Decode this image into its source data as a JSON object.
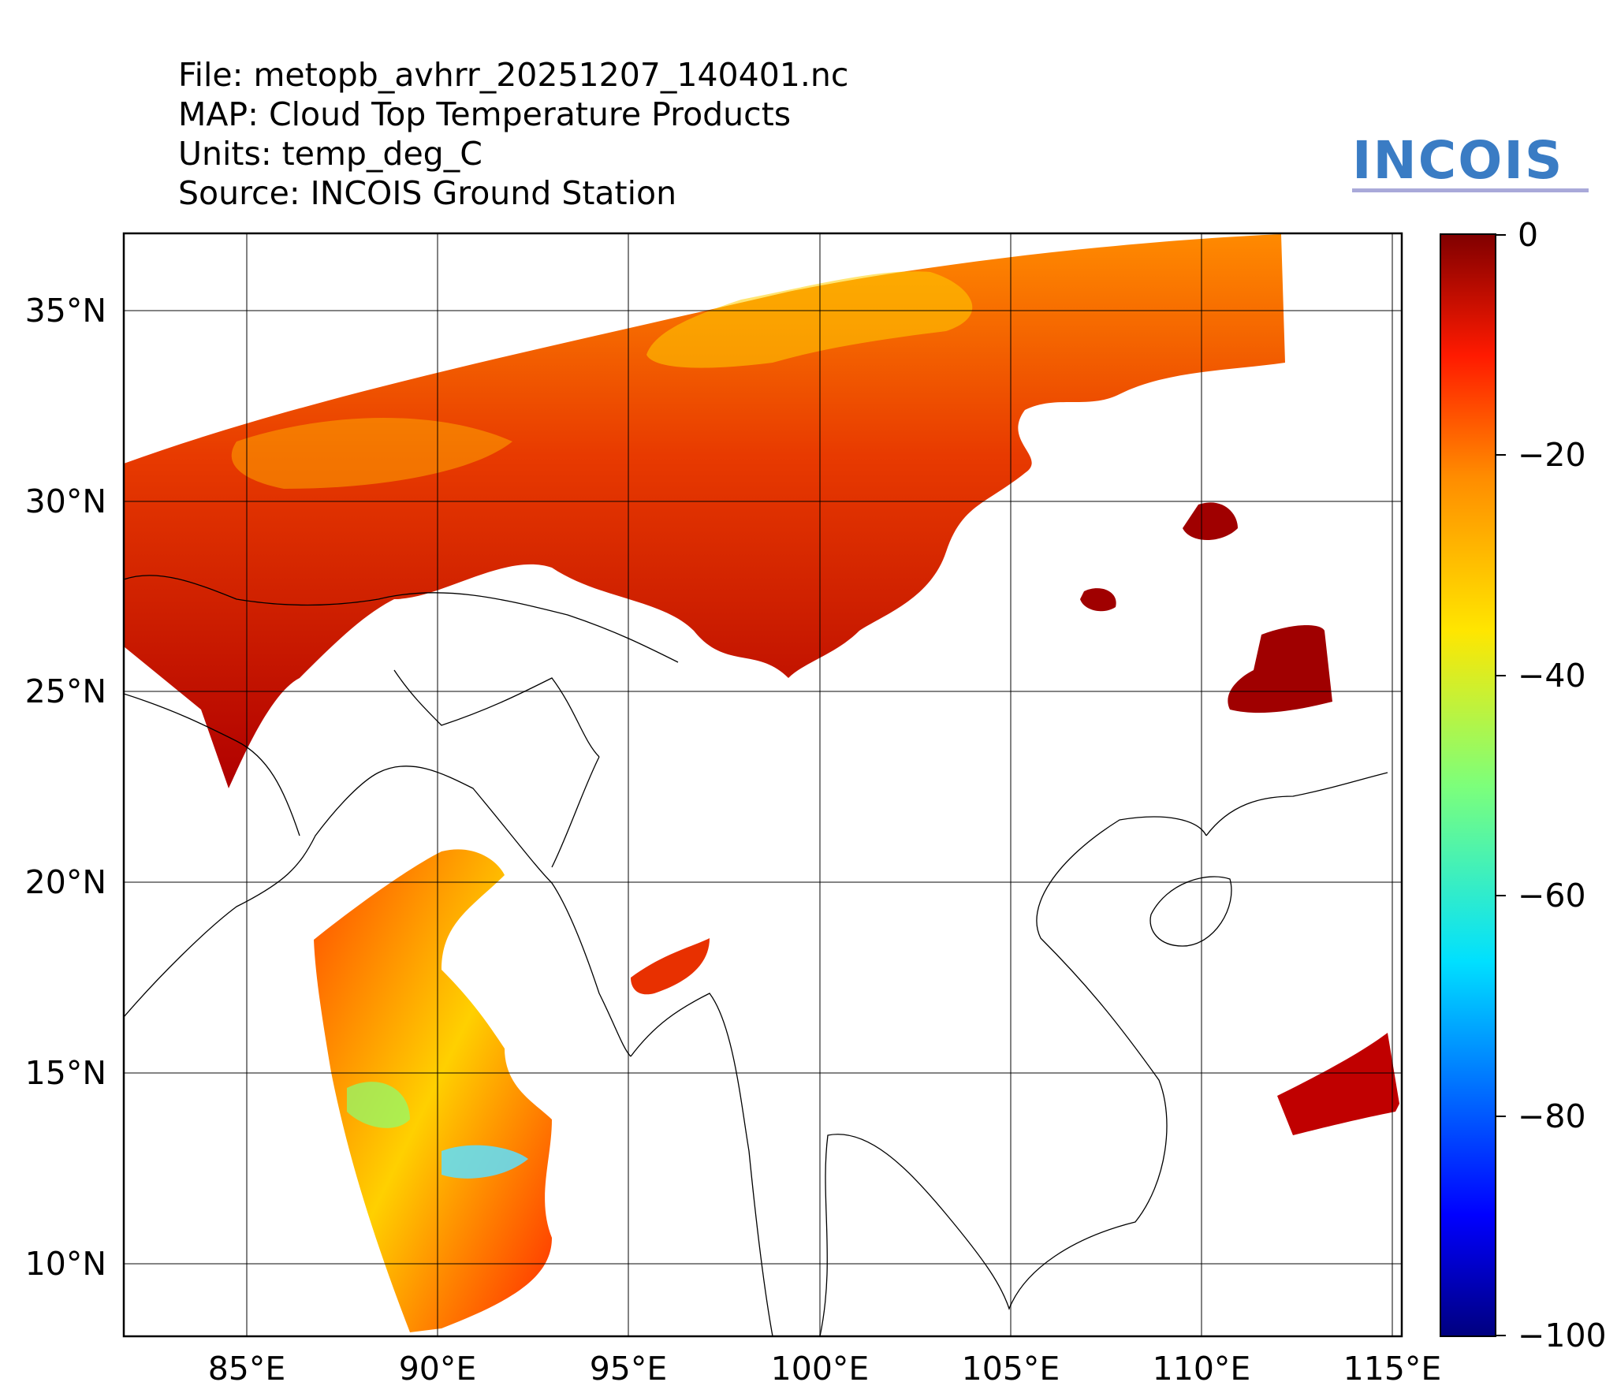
{
  "header": {
    "file_line": "File: metopb_avhrr_20251207_140401.nc",
    "map_line": "MAP: Cloud Top Temperature Products",
    "units_line": "Units: temp_deg_C",
    "source_line": "Source: INCOIS Ground Station"
  },
  "logo": {
    "text": "INCOIS",
    "color": "#3a7cc4"
  },
  "map": {
    "lon_ticks": [
      "85°E",
      "90°E",
      "95°E",
      "100°E",
      "105°E",
      "110°E",
      "115°E"
    ],
    "lat_ticks": [
      "35°N",
      "30°N",
      "25°N",
      "20°N",
      "15°N",
      "10°N"
    ],
    "lon_range": [
      81.8,
      115.3
    ],
    "lat_range": [
      8.1,
      37.0
    ],
    "gridlines": true
  },
  "colorbar": {
    "colormap": "jet_r",
    "ticks": [
      "0",
      "−20",
      "−40",
      "−60",
      "−80",
      "−100"
    ],
    "range": [
      -100,
      0
    ]
  },
  "chart_data": {
    "type": "heatmap",
    "title": "MAP: Cloud Top Temperature Products",
    "units": "temp_deg_C",
    "xlim": [
      81.8,
      115.3
    ],
    "ylim": [
      8.1,
      37.0
    ],
    "xticks": [
      85,
      90,
      95,
      100,
      105,
      110,
      115
    ],
    "yticks": [
      10,
      15,
      20,
      25,
      30,
      35
    ],
    "colorbar_range": [
      -100,
      0
    ],
    "colorbar_ticks": [
      0,
      -20,
      -40,
      -60,
      -80,
      -100
    ],
    "grid": true
  }
}
